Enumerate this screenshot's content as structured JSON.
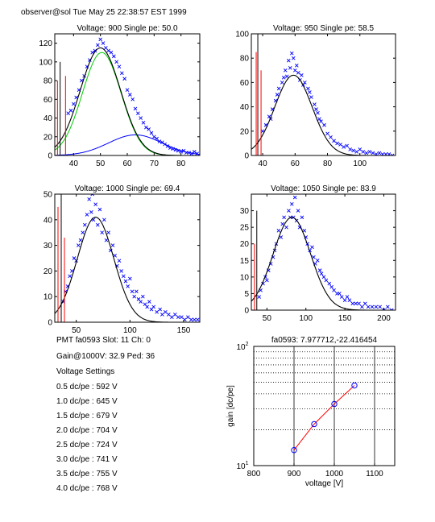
{
  "header": "observer@sol  Tue May 25 22:38:57 EST 1999",
  "info": {
    "pmt_line": "PMT fa0593 Slot: 11 Ch: 0",
    "gain_line": "Gain@1000V: 32.9 Ped: 36",
    "settings_title": "Voltage Settings",
    "settings": [
      "0.5 dc/pe : 592 V",
      "1.0 dc/pe : 645 V",
      "1.5 dc/pe : 679 V",
      "2.0 dc/pe : 704 V",
      "2.5 dc/pe : 724 V",
      "3.0 dc/pe : 741 V",
      "3.5 dc/pe : 755 V",
      "4.0 dc/pe : 768 V"
    ]
  },
  "colors": {
    "data": "#0000ff",
    "fit": "#000000",
    "gaussian": "#00cc00",
    "background": "#0000ff",
    "pedestal": "#ff0000",
    "gainline": "#ff0000"
  },
  "chart_data": [
    {
      "type": "scatter",
      "title": "Voltage: 900 Single pe: 50.0",
      "xlim": [
        33,
        87
      ],
      "ylim": [
        0,
        130
      ],
      "xticks": [
        40,
        50,
        60,
        70,
        80
      ],
      "yticks": [
        0,
        20,
        40,
        60,
        80,
        100,
        120
      ],
      "pedestal_x": [
        34,
        35,
        37
      ],
      "pedestal_h": [
        80,
        100,
        85
      ],
      "peak": {
        "A": 115,
        "mu": 50,
        "sigma": 7.5
      },
      "gaussian": {
        "A": 110,
        "mu": 50.5,
        "sigma": 7.2
      },
      "background": {
        "A": 22,
        "mu": 63,
        "sigma": 10
      },
      "points": [
        [
          38,
          45
        ],
        [
          39,
          48
        ],
        [
          40,
          55
        ],
        [
          41,
          62
        ],
        [
          42,
          70
        ],
        [
          43,
          80
        ],
        [
          44,
          85
        ],
        [
          45,
          95
        ],
        [
          46,
          102
        ],
        [
          47,
          110
        ],
        [
          48,
          112
        ],
        [
          49,
          118
        ],
        [
          50,
          124
        ],
        [
          51,
          120
        ],
        [
          52,
          115
        ],
        [
          53,
          112
        ],
        [
          54,
          110
        ],
        [
          55,
          106
        ],
        [
          56,
          100
        ],
        [
          57,
          95
        ],
        [
          58,
          88
        ],
        [
          59,
          82
        ],
        [
          60,
          70
        ],
        [
          61,
          65
        ],
        [
          62,
          60
        ],
        [
          63,
          50
        ],
        [
          64,
          45
        ],
        [
          65,
          40
        ],
        [
          66,
          35
        ],
        [
          67,
          30
        ],
        [
          68,
          28
        ],
        [
          69,
          24
        ],
        [
          70,
          20
        ],
        [
          71,
          18
        ],
        [
          72,
          15
        ],
        [
          73,
          14
        ],
        [
          74,
          12
        ],
        [
          75,
          10
        ],
        [
          76,
          8
        ],
        [
          77,
          7
        ],
        [
          78,
          6
        ],
        [
          79,
          5
        ],
        [
          80,
          4
        ],
        [
          81,
          5
        ],
        [
          82,
          3
        ],
        [
          83,
          3
        ],
        [
          84,
          2
        ],
        [
          85,
          4
        ],
        [
          86,
          2
        ]
      ]
    },
    {
      "type": "scatter",
      "title": "Voltage: 950 Single pe: 58.5",
      "xlim": [
        33,
        122
      ],
      "ylim": [
        0,
        100
      ],
      "xticks": [
        40,
        60,
        80,
        100
      ],
      "yticks": [
        0,
        20,
        40,
        60,
        80,
        100
      ],
      "pedestal_x": [
        36,
        37,
        39
      ],
      "pedestal_h": [
        85,
        100,
        70
      ],
      "peak": {
        "A": 66,
        "mu": 59,
        "sigma": 11.5
      },
      "points": [
        [
          40,
          20
        ],
        [
          42,
          25
        ],
        [
          44,
          32
        ],
        [
          45,
          30
        ],
        [
          46,
          38
        ],
        [
          48,
          45
        ],
        [
          49,
          50
        ],
        [
          50,
          55
        ],
        [
          52,
          60
        ],
        [
          53,
          64
        ],
        [
          54,
          70
        ],
        [
          55,
          65
        ],
        [
          56,
          78
        ],
        [
          57,
          72
        ],
        [
          58,
          84
        ],
        [
          59,
          80
        ],
        [
          60,
          70
        ],
        [
          61,
          74
        ],
        [
          62,
          68
        ],
        [
          63,
          62
        ],
        [
          64,
          66
        ],
        [
          65,
          58
        ],
        [
          66,
          60
        ],
        [
          68,
          55
        ],
        [
          69,
          52
        ],
        [
          70,
          48
        ],
        [
          72,
          42
        ],
        [
          73,
          38
        ],
        [
          74,
          35
        ],
        [
          75,
          30
        ],
        [
          76,
          28
        ],
        [
          78,
          25
        ],
        [
          80,
          18
        ],
        [
          82,
          15
        ],
        [
          84,
          12
        ],
        [
          86,
          10
        ],
        [
          88,
          9
        ],
        [
          90,
          7
        ],
        [
          92,
          8
        ],
        [
          94,
          5
        ],
        [
          96,
          4
        ],
        [
          98,
          3
        ],
        [
          100,
          5
        ],
        [
          102,
          3
        ],
        [
          104,
          2
        ],
        [
          106,
          3
        ],
        [
          108,
          2
        ],
        [
          110,
          1
        ],
        [
          112,
          2
        ],
        [
          114,
          1
        ],
        [
          116,
          1
        ],
        [
          118,
          1
        ],
        [
          120,
          0
        ]
      ]
    },
    {
      "type": "scatter",
      "title": "Voltage: 1000 Single pe: 69.4",
      "xlim": [
        30,
        165
      ],
      "ylim": [
        0,
        50
      ],
      "xticks": [
        50,
        100,
        150
      ],
      "yticks": [
        0,
        10,
        20,
        30,
        40,
        50
      ],
      "pedestal_x": [
        33,
        36,
        39
      ],
      "pedestal_h": [
        45,
        50,
        33
      ],
      "peak": {
        "A": 41,
        "mu": 68,
        "sigma": 17
      },
      "points": [
        [
          38,
          8
        ],
        [
          40,
          12
        ],
        [
          42,
          14
        ],
        [
          44,
          18
        ],
        [
          46,
          20
        ],
        [
          48,
          25
        ],
        [
          50,
          24
        ],
        [
          52,
          30
        ],
        [
          54,
          32
        ],
        [
          56,
          35
        ],
        [
          58,
          38
        ],
        [
          60,
          42
        ],
        [
          62,
          48
        ],
        [
          64,
          43
        ],
        [
          65,
          50
        ],
        [
          66,
          40
        ],
        [
          68,
          46
        ],
        [
          70,
          38
        ],
        [
          72,
          44
        ],
        [
          74,
          35
        ],
        [
          76,
          40
        ],
        [
          78,
          32
        ],
        [
          80,
          35
        ],
        [
          82,
          28
        ],
        [
          84,
          30
        ],
        [
          86,
          26
        ],
        [
          88,
          22
        ],
        [
          90,
          24
        ],
        [
          92,
          20
        ],
        [
          94,
          18
        ],
        [
          96,
          16
        ],
        [
          98,
          14
        ],
        [
          100,
          17
        ],
        [
          102,
          12
        ],
        [
          104,
          10
        ],
        [
          106,
          12
        ],
        [
          108,
          9
        ],
        [
          110,
          8
        ],
        [
          112,
          10
        ],
        [
          114,
          7
        ],
        [
          116,
          6
        ],
        [
          118,
          8
        ],
        [
          120,
          5
        ],
        [
          122,
          6
        ],
        [
          125,
          4
        ],
        [
          128,
          5
        ],
        [
          130,
          3
        ],
        [
          133,
          4
        ],
        [
          136,
          3
        ],
        [
          139,
          2
        ],
        [
          142,
          3
        ],
        [
          145,
          2
        ],
        [
          148,
          2
        ],
        [
          151,
          1
        ],
        [
          154,
          2
        ],
        [
          157,
          1
        ],
        [
          160,
          1
        ],
        [
          163,
          1
        ]
      ]
    },
    {
      "type": "scatter",
      "title": "Voltage: 1050 Single pe: 83.9",
      "xlim": [
        30,
        215
      ],
      "ylim": [
        0,
        35
      ],
      "xticks": [
        50,
        100,
        150,
        200
      ],
      "yticks": [
        0,
        5,
        10,
        15,
        20,
        25,
        30
      ],
      "pedestal_x": [
        34,
        37
      ],
      "pedestal_h": [
        20,
        30
      ],
      "peak": {
        "A": 28,
        "mu": 82,
        "sigma": 24
      },
      "points": [
        [
          40,
          4
        ],
        [
          42,
          6
        ],
        [
          45,
          8
        ],
        [
          48,
          10
        ],
        [
          50,
          9
        ],
        [
          52,
          12
        ],
        [
          55,
          14
        ],
        [
          58,
          16
        ],
        [
          60,
          18
        ],
        [
          62,
          20
        ],
        [
          65,
          24
        ],
        [
          68,
          22
        ],
        [
          70,
          26
        ],
        [
          72,
          28
        ],
        [
          75,
          25
        ],
        [
          78,
          30
        ],
        [
          80,
          28
        ],
        [
          82,
          32
        ],
        [
          84,
          28
        ],
        [
          86,
          34
        ],
        [
          88,
          27
        ],
        [
          90,
          30
        ],
        [
          92,
          25
        ],
        [
          95,
          28
        ],
        [
          98,
          24
        ],
        [
          100,
          22
        ],
        [
          102,
          20
        ],
        [
          105,
          18
        ],
        [
          108,
          19
        ],
        [
          110,
          16
        ],
        [
          112,
          14
        ],
        [
          115,
          15
        ],
        [
          118,
          12
        ],
        [
          120,
          11
        ],
        [
          123,
          10
        ],
        [
          126,
          9
        ],
        [
          130,
          8
        ],
        [
          133,
          7
        ],
        [
          136,
          6
        ],
        [
          140,
          5
        ],
        [
          143,
          5
        ],
        [
          146,
          4
        ],
        [
          150,
          3
        ],
        [
          153,
          4
        ],
        [
          156,
          3
        ],
        [
          160,
          2
        ],
        [
          164,
          2
        ],
        [
          168,
          2
        ],
        [
          172,
          1
        ],
        [
          176,
          2
        ],
        [
          180,
          1
        ],
        [
          185,
          1
        ],
        [
          190,
          1
        ],
        [
          195,
          1
        ],
        [
          200,
          0
        ],
        [
          205,
          1
        ],
        [
          210,
          0
        ]
      ]
    },
    {
      "type": "line",
      "title": "fa0593: 7.977712,-22.416454",
      "xlabel": "voltage [V]",
      "ylabel": "gain [dc/pe]",
      "xlim": [
        800,
        1150
      ],
      "ylim": [
        10,
        100
      ],
      "yscale": "log",
      "xticks": [
        800,
        900,
        1000,
        1100
      ],
      "ytick_labels": [
        {
          "value": 10,
          "base": "10",
          "exp": "1"
        },
        {
          "value": 100,
          "base": "10",
          "exp": "2"
        }
      ],
      "grid": true,
      "x": [
        900,
        950,
        1000,
        1050
      ],
      "y": [
        13.5,
        22.3,
        32.9,
        47.0
      ]
    }
  ]
}
